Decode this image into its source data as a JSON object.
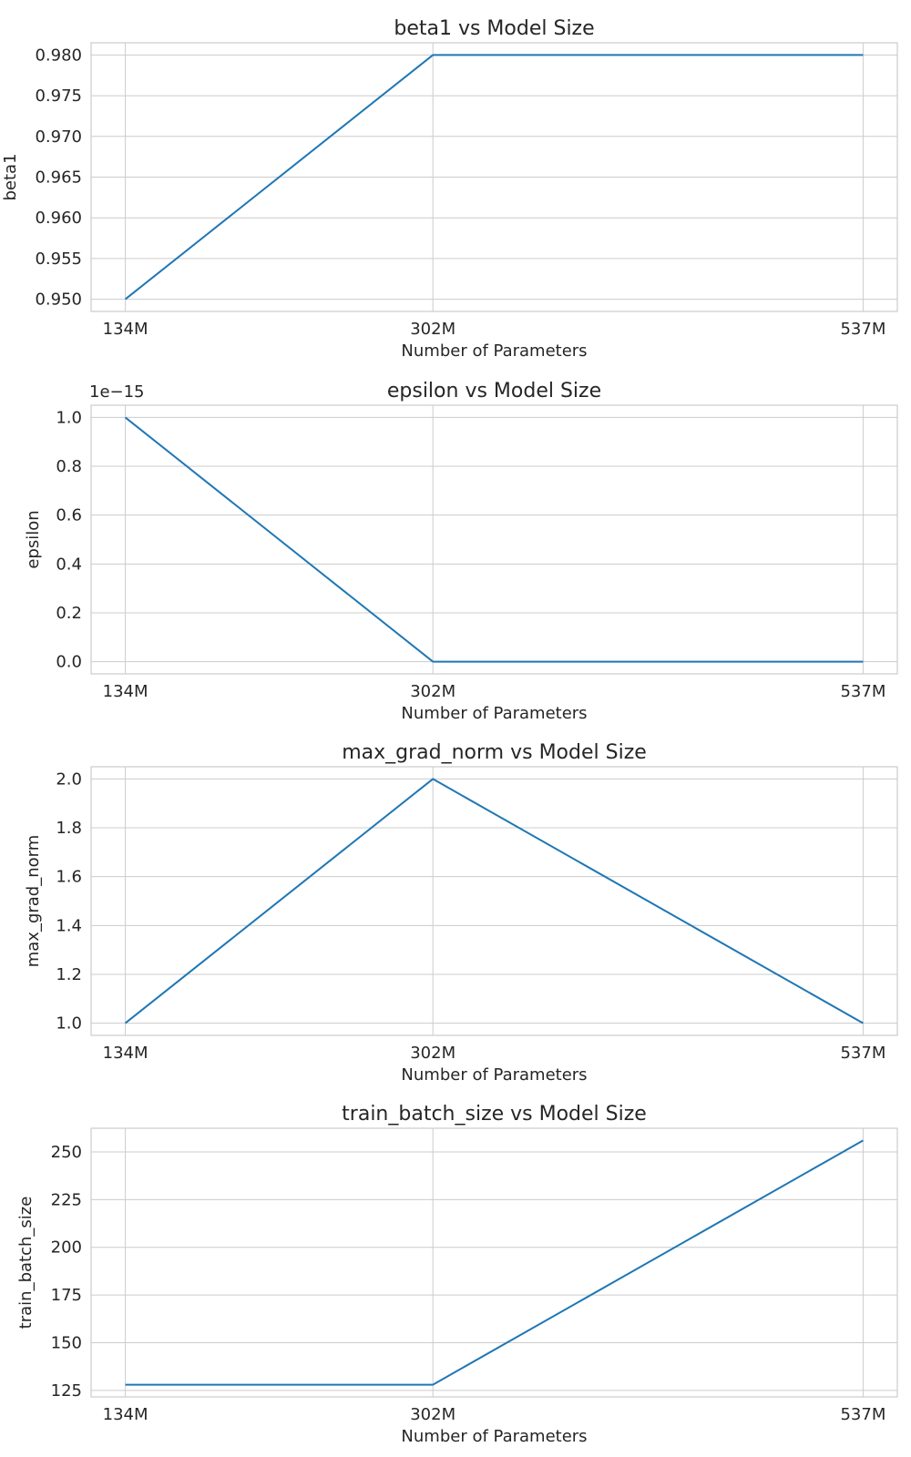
{
  "chart_data": [
    {
      "type": "line",
      "title": "beta1 vs Model Size",
      "xlabel": "Number of Parameters",
      "ylabel": "beta1",
      "categories": [
        "134M",
        "302M",
        "537M"
      ],
      "x": [
        134,
        302,
        537
      ],
      "series": [
        {
          "values": [
            0.95,
            0.98,
            0.98
          ]
        }
      ],
      "ylim": [
        0.9485,
        0.9815
      ],
      "yticks": [
        0.95,
        0.955,
        0.96,
        0.965,
        0.97,
        0.975,
        0.98
      ],
      "ytick_labels": [
        "0.950",
        "0.955",
        "0.960",
        "0.965",
        "0.970",
        "0.975",
        "0.980"
      ],
      "offset_text": "",
      "grid": true
    },
    {
      "type": "line",
      "title": "epsilon vs Model Size",
      "xlabel": "Number of Parameters",
      "ylabel": "epsilon",
      "categories": [
        "134M",
        "302M",
        "537M"
      ],
      "x": [
        134,
        302,
        537
      ],
      "series": [
        {
          "values": [
            1e-15,
            1e-30,
            1e-30
          ]
        }
      ],
      "y_offset_scale": 1e-15,
      "ylim": [
        -0.05,
        1.05
      ],
      "yticks": [
        0.0,
        0.2,
        0.4,
        0.6,
        0.8,
        1.0
      ],
      "ytick_labels": [
        "0.0",
        "0.2",
        "0.4",
        "0.6",
        "0.8",
        "1.0"
      ],
      "offset_text": "1e−15",
      "grid": true
    },
    {
      "type": "line",
      "title": "max_grad_norm vs Model Size",
      "xlabel": "Number of Parameters",
      "ylabel": "max_grad_norm",
      "categories": [
        "134M",
        "302M",
        "537M"
      ],
      "x": [
        134,
        302,
        537
      ],
      "series": [
        {
          "values": [
            1.0,
            2.0,
            1.0
          ]
        }
      ],
      "ylim": [
        0.95,
        2.05
      ],
      "yticks": [
        1.0,
        1.2,
        1.4,
        1.6,
        1.8,
        2.0
      ],
      "ytick_labels": [
        "1.0",
        "1.2",
        "1.4",
        "1.6",
        "1.8",
        "2.0"
      ],
      "offset_text": "",
      "grid": true
    },
    {
      "type": "line",
      "title": "train_batch_size vs Model Size",
      "xlabel": "Number of Parameters",
      "ylabel": "train_batch_size",
      "categories": [
        "134M",
        "302M",
        "537M"
      ],
      "x": [
        134,
        302,
        537
      ],
      "series": [
        {
          "values": [
            128,
            128,
            256
          ]
        }
      ],
      "ylim": [
        121.6,
        262.4
      ],
      "yticks": [
        125,
        150,
        175,
        200,
        225,
        250
      ],
      "ytick_labels": [
        "125",
        "150",
        "175",
        "200",
        "225",
        "250"
      ],
      "offset_text": "",
      "grid": true
    }
  ],
  "colors": {
    "line": "#1f77b4",
    "grid": "#cccccc",
    "text": "#262626"
  }
}
